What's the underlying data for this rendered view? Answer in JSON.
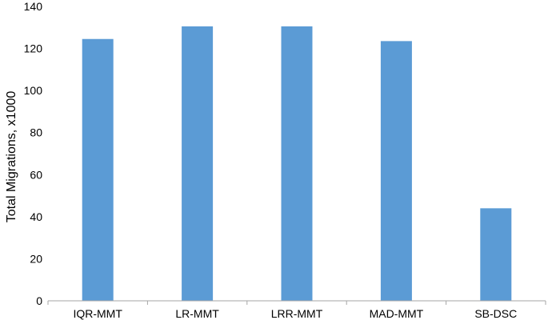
{
  "chart_data": {
    "type": "bar",
    "categories": [
      "IQR-MMT",
      "LR-MMT",
      "LRR-MMT",
      "MAD-MMT",
      "SB-DSC"
    ],
    "values": [
      124.5,
      130.5,
      130.5,
      123.5,
      44.0
    ],
    "xlabel": "",
    "ylabel": "Total Migrations, x1000",
    "ylim": [
      0,
      140
    ],
    "yticks": [
      0,
      20,
      40,
      60,
      80,
      100,
      120,
      140
    ],
    "grid": false,
    "bar_color": "#5b9bd5",
    "axis_color": "#a6a6a6"
  }
}
